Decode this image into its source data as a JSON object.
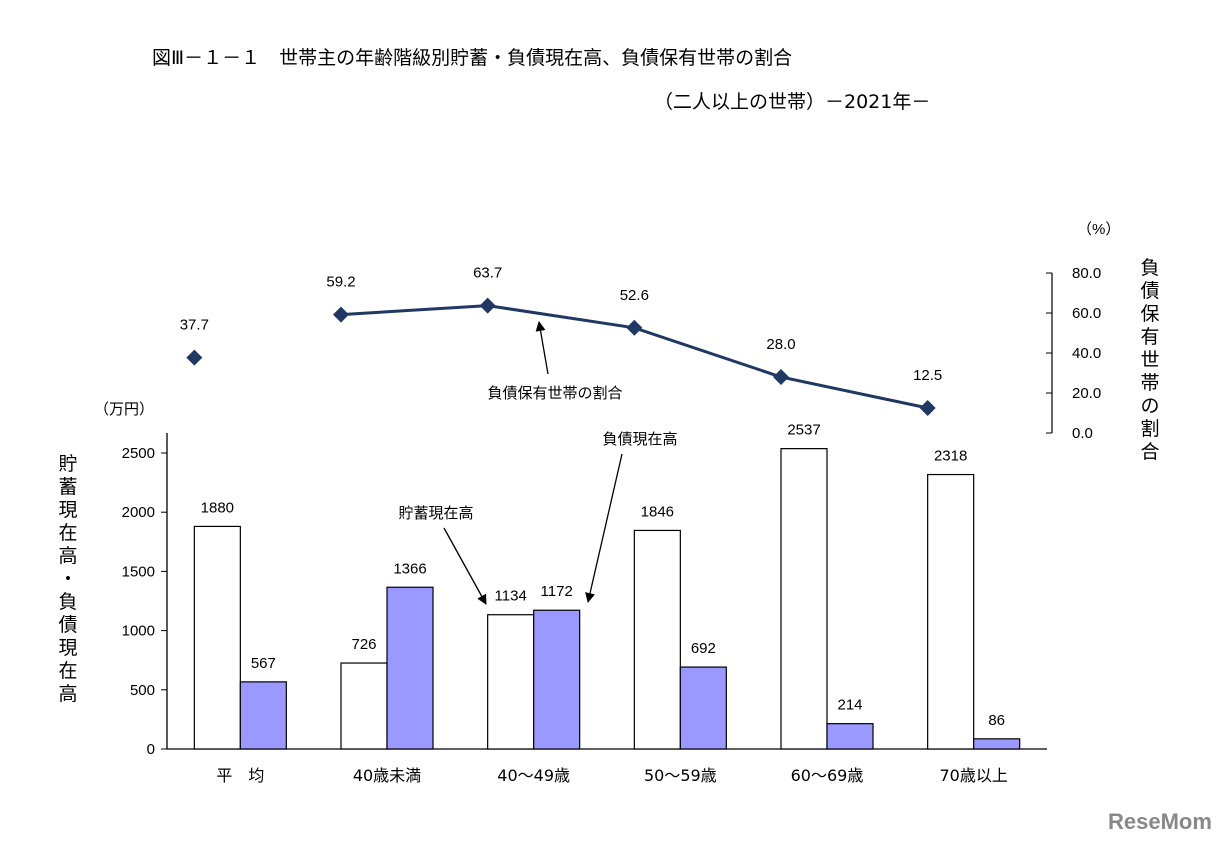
{
  "title_line1": "図Ⅲ－１－１　世帯主の年齢階級別貯蓄・負債現在高、負債保有世帯の割合",
  "title_line2": "（二人以上の世帯）－2021年－",
  "watermark": "ReseMom",
  "chart_data": {
    "type": "bar",
    "categories": [
      "平　均",
      "40歳未満",
      "40～49歳",
      "50～59歳",
      "60～69歳",
      "70歳以上"
    ],
    "series": [
      {
        "name": "貯蓄現在高",
        "values": [
          1880,
          726,
          1134,
          1846,
          2537,
          2318
        ],
        "color": "#ffffff"
      },
      {
        "name": "負債現在高",
        "values": [
          567,
          1366,
          1172,
          692,
          214,
          86
        ],
        "color": "#9999ff"
      }
    ],
    "line_series": {
      "name": "負債保有世帯の割合",
      "values": [
        37.7,
        59.2,
        63.7,
        52.6,
        28.0,
        12.5
      ],
      "labels": [
        "37.7",
        "59.2",
        "63.7",
        "52.6",
        "28.0",
        "12.5"
      ],
      "color": "#1f3864",
      "connected_from_index": 1
    },
    "ylabel": "貯蓄現在高・負債現在高",
    "yunit": "（万円）",
    "ylim": [
      0,
      2500
    ],
    "yticks": [
      0,
      500,
      1000,
      1500,
      2000,
      2500
    ],
    "y2label": "負債保有世帯の割合",
    "y2unit": "（%）",
    "y2lim": [
      0,
      80
    ],
    "y2ticks": [
      "0.0",
      "20.0",
      "40.0",
      "60.0",
      "80.0"
    ],
    "annotations": {
      "savings": "貯蓄現在高",
      "debt": "負債現在高",
      "ratio": "負債保有世帯の割合"
    }
  }
}
